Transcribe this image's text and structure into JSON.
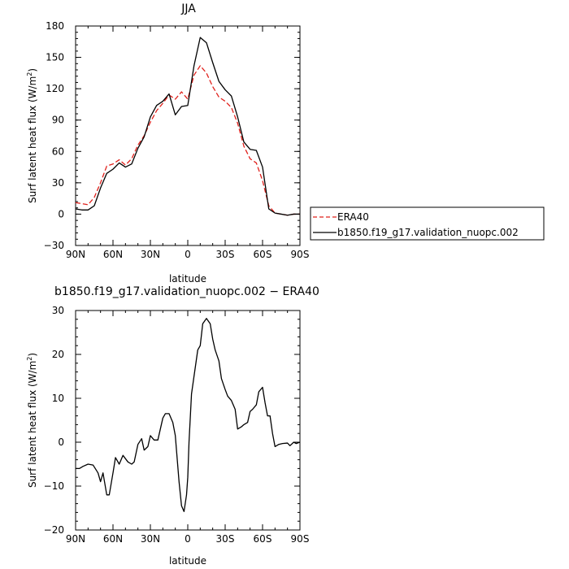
{
  "chart_data": [
    {
      "type": "line",
      "title": "JJA",
      "xlabel": "latitude",
      "ylabel_main": "Surf latent heat flux (W/m",
      "ylabel_sup": "2",
      "ylabel_close": ")",
      "xlim": [
        90,
        -90
      ],
      "ylim": [
        -30,
        180
      ],
      "xticks": [
        90,
        60,
        30,
        0,
        -30,
        -60,
        -90
      ],
      "xticklabels": [
        "90N",
        "60N",
        "30N",
        "0",
        "30S",
        "60S",
        "90S"
      ],
      "yticks": [
        -30,
        0,
        30,
        60,
        90,
        120,
        150,
        180
      ],
      "yticklabels": [
        "−30",
        "0",
        "30",
        "60",
        "90",
        "120",
        "150",
        "180"
      ],
      "x": [
        90,
        85,
        80,
        75,
        70,
        65,
        60,
        55,
        50,
        45,
        40,
        35,
        30,
        25,
        20,
        15,
        10,
        5,
        0,
        -5,
        -10,
        -15,
        -20,
        -25,
        -30,
        -35,
        -40,
        -45,
        -50,
        -55,
        -60,
        -65,
        -70,
        -75,
        -80,
        -85,
        -90
      ],
      "series": [
        {
          "name": "ERA40",
          "color": "#e0201b",
          "dash": true,
          "values": [
            11,
            10,
            9,
            16,
            30,
            46,
            48,
            52,
            47,
            53,
            66,
            75,
            88,
            99,
            106,
            114,
            110,
            117,
            110,
            133,
            142,
            135,
            122,
            112,
            108,
            102,
            87,
            65,
            53,
            49,
            32,
            8,
            1,
            0,
            -1,
            0,
            0
          ]
        },
        {
          "name": "b1850.f19_g17.validation_nuopc.002",
          "color": "#000000",
          "dash": false,
          "values": [
            5,
            4,
            4,
            8,
            25,
            39,
            43,
            49,
            45,
            48,
            63,
            74,
            93,
            104,
            108,
            115,
            95,
            103,
            104,
            142,
            169,
            164,
            145,
            127,
            119,
            113,
            93,
            69,
            62,
            61,
            45,
            5,
            1,
            0,
            -1,
            0,
            0
          ]
        }
      ],
      "legend_placement": "right"
    },
    {
      "type": "line",
      "title": "b1850.f19_g17.validation_nuopc.002 − ERA40",
      "xlabel": "latitude",
      "ylabel_main": "Surf latent heat flux (W/m",
      "ylabel_sup": "2",
      "ylabel_close": ")",
      "xlim": [
        90,
        -90
      ],
      "ylim": [
        -20,
        30
      ],
      "xticks": [
        90,
        60,
        30,
        0,
        -30,
        -60,
        -90
      ],
      "xticklabels": [
        "90N",
        "60N",
        "30N",
        "0",
        "30S",
        "60S",
        "90S"
      ],
      "yticks": [
        -20,
        -10,
        0,
        10,
        20,
        30
      ],
      "yticklabels": [
        "−20",
        "−10",
        "0",
        "10",
        "20",
        "30"
      ],
      "x": [
        90,
        87,
        84,
        80,
        76,
        72,
        70,
        68,
        65,
        63,
        60,
        58,
        55,
        52,
        48,
        45,
        43,
        40,
        37,
        35,
        32,
        30,
        27,
        24,
        20,
        18,
        15,
        12,
        10,
        7,
        5,
        3,
        1,
        0,
        -1,
        -3,
        -5,
        -8,
        -10,
        -12,
        -15,
        -18,
        -20,
        -22,
        -25,
        -27,
        -30,
        -32,
        -35,
        -38,
        -40,
        -43,
        -45,
        -48,
        -50,
        -52,
        -55,
        -57,
        -60,
        -62,
        -64,
        -66,
        -68,
        -70,
        -73,
        -76,
        -80,
        -82,
        -85,
        -87,
        -90
      ],
      "series": [
        {
          "name": "",
          "color": "#000000",
          "dash": false,
          "values": [
            -6,
            -6,
            -5.5,
            -5,
            -5.2,
            -7,
            -9,
            -7,
            -12,
            -12,
            -7,
            -3.5,
            -5,
            -3,
            -4.5,
            -5,
            -4.5,
            -0.5,
            0.8,
            -1.8,
            -1,
            1.5,
            0.5,
            0.5,
            5.5,
            6.5,
            6.5,
            4.5,
            1.5,
            -9,
            -14.5,
            -15.8,
            -12,
            -8,
            0,
            11,
            15,
            21,
            22,
            27,
            28.2,
            27,
            23.5,
            21,
            18.5,
            14.5,
            12,
            10.5,
            9.5,
            7.5,
            3,
            3.5,
            4,
            4.5,
            7,
            7.5,
            8.5,
            11.5,
            12.5,
            9,
            6,
            6,
            2,
            -1,
            -0.5,
            -0.3,
            -0.2,
            -0.8,
            0,
            -0.3,
            0
          ]
        }
      ]
    }
  ]
}
